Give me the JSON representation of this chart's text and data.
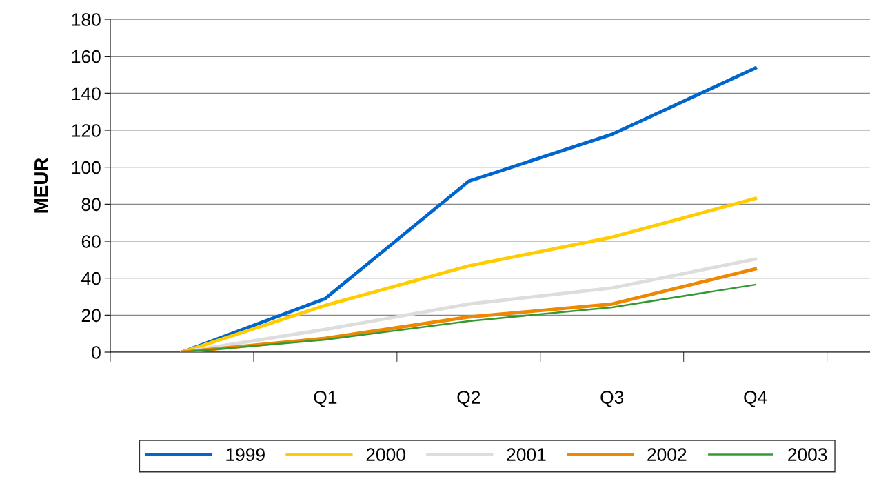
{
  "chart_data": {
    "type": "line",
    "ylabel": "MEUR",
    "categories": [
      null,
      "Q1",
      "Q2",
      "Q3",
      "Q4"
    ],
    "series": [
      {
        "name": "1999",
        "color": "#0066cc",
        "values": [
          0,
          29,
          92.4,
          117.8,
          153.6
        ]
      },
      {
        "name": "2000",
        "color": "#ffcc00",
        "values": [
          0,
          25.3,
          46.6,
          62.2,
          83.1
        ]
      },
      {
        "name": "2001",
        "color": "#dddddd",
        "values": [
          0,
          12.3,
          26,
          34.7,
          50.3
        ]
      },
      {
        "name": "2002",
        "color": "#ee8800",
        "values": [
          0,
          7.5,
          19,
          26,
          45
        ]
      },
      {
        "name": "2003",
        "color": "#339933",
        "values": [
          0,
          6.7,
          16.8,
          24.2,
          36.5
        ]
      }
    ],
    "ylim": [
      0,
      180
    ],
    "yticks": [
      0,
      20,
      40,
      60,
      80,
      100,
      120,
      140,
      160,
      180
    ],
    "grid": "y",
    "legend": "bottom",
    "marker": "none",
    "line_style": "solid"
  }
}
